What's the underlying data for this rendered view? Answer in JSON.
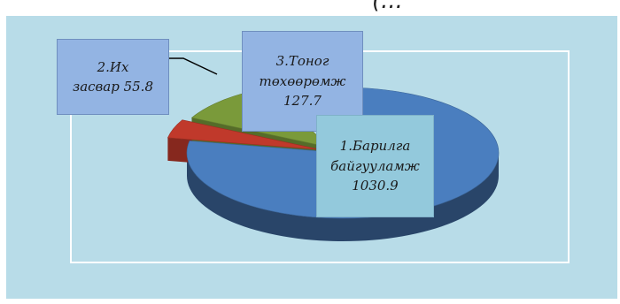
{
  "header": {
    "caption": "(..."
  },
  "colors": {
    "background": "#b8dce8",
    "plot_border": "#ffffff",
    "slice_1": "#4a7ebf",
    "slice_2": "#c0392b",
    "slice_3": "#7a9a3a"
  },
  "chart_data": {
    "type": "pie",
    "title": "",
    "legend": "none",
    "slices": [
      {
        "label_lines": [
          "1.Барилга",
          "байгууламж",
          "1030.9"
        ],
        "value": 1030.9,
        "color": "#4a7ebf"
      },
      {
        "label_lines": [
          "2.Их",
          "засвар 55.8"
        ],
        "value": 55.8,
        "color": "#c0392b"
      },
      {
        "label_lines": [
          "3.Тоног",
          "төхөөрөмж",
          "127.7"
        ],
        "value": 127.7,
        "color": "#7a9a3a"
      }
    ]
  }
}
